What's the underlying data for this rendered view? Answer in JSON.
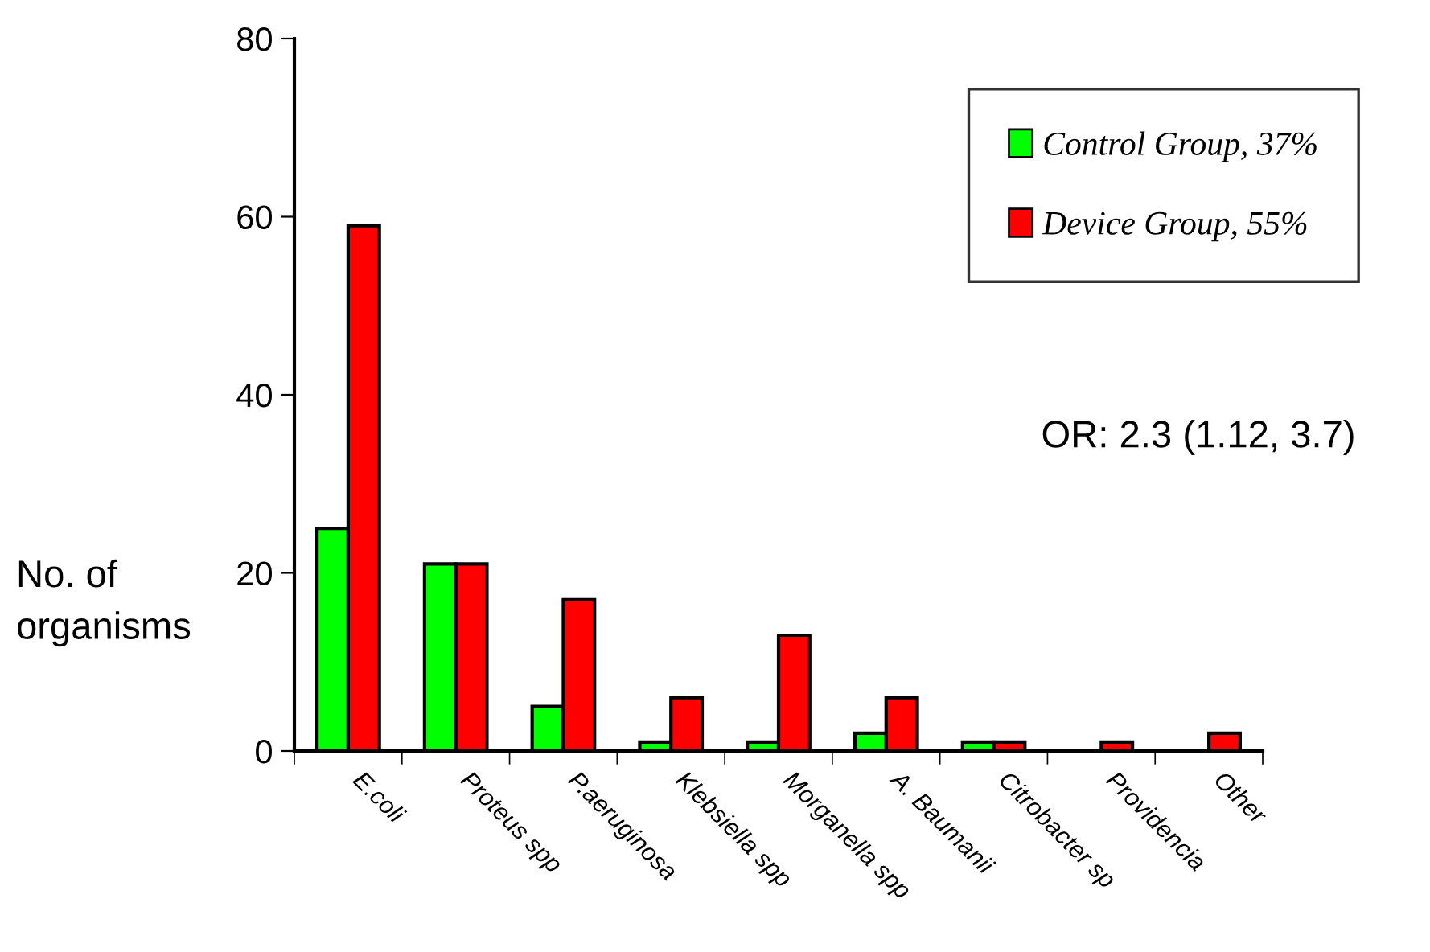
{
  "chart_data": {
    "type": "bar",
    "ylabel": "No. of\norganisms",
    "categories": [
      "E.coli",
      "Proteus spp",
      "P.aeruginosa",
      "Klebsiella spp",
      "Morganella spp",
      "A. Baumanii",
      "Citrobacter sp",
      "Providencia",
      "Other"
    ],
    "series": [
      {
        "name": "Control Group, 37%",
        "color": "#00ff00",
        "values": [
          25,
          21,
          5,
          1,
          1,
          2,
          1,
          0,
          0
        ]
      },
      {
        "name": "Device Group, 55%",
        "color": "#ff0000",
        "values": [
          59,
          21,
          17,
          6,
          13,
          6,
          1,
          1,
          2
        ]
      }
    ],
    "ylim": [
      0,
      80
    ],
    "yticks": [
      0,
      20,
      40,
      60,
      80
    ],
    "annotations": [
      "OR: 2.3 (1.12, 3.7)"
    ],
    "legend": "top right",
    "grid": false
  }
}
